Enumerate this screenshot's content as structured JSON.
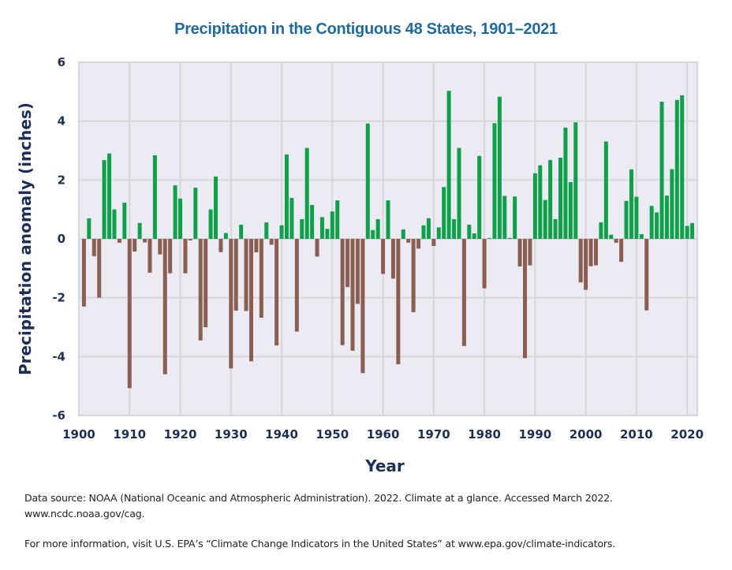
{
  "chart_data": {
    "type": "bar",
    "title": "Precipitation in the Contiguous 48 States, 1901–2021",
    "xlabel": "Year",
    "ylabel": "Precipitation anomaly (inches)",
    "xlim": [
      1900,
      2022
    ],
    "ylim": [
      -6,
      6
    ],
    "xticks": [
      1900,
      1910,
      1920,
      1930,
      1940,
      1950,
      1960,
      1970,
      1980,
      1990,
      2000,
      2010,
      2020
    ],
    "yticks": [
      6,
      4,
      2,
      0,
      -2,
      -4,
      -6
    ],
    "grid": true,
    "legend": "none",
    "colors": {
      "positive": "#0fa04a",
      "negative": "#8b5e52",
      "plot_background": "#ecebf3",
      "grid": "#d6d5dc"
    },
    "start_year": 1901,
    "values": [
      -2.3,
      0.7,
      -0.59,
      -2.0,
      2.68,
      2.9,
      1.0,
      -0.13,
      1.23,
      -5.07,
      -0.43,
      0.54,
      -0.12,
      -1.15,
      2.84,
      -0.53,
      -4.6,
      -1.17,
      1.82,
      1.37,
      -1.17,
      -0.05,
      1.74,
      -3.45,
      -3.0,
      1.0,
      2.12,
      -0.45,
      0.2,
      -4.4,
      -2.44,
      0.48,
      -2.45,
      -4.16,
      -0.46,
      -2.68,
      0.56,
      -0.2,
      -3.62,
      0.46,
      2.87,
      1.39,
      -3.15,
      0.67,
      3.09,
      1.15,
      -0.6,
      0.74,
      0.34,
      0.93,
      1.31,
      -3.61,
      -1.64,
      -3.8,
      -2.21,
      -4.56,
      3.92,
      0.3,
      0.67,
      -1.19,
      1.31,
      -1.35,
      -4.26,
      0.32,
      -0.13,
      -2.49,
      -0.33,
      0.46,
      0.7,
      -0.24,
      0.39,
      1.76,
      5.03,
      0.67,
      3.09,
      -3.64,
      0.48,
      0.19,
      2.82,
      -1.68,
      0.03,
      3.93,
      4.83,
      1.46,
      0.03,
      1.44,
      -0.94,
      -4.05,
      -0.9,
      2.23,
      2.5,
      1.32,
      2.68,
      0.67,
      2.76,
      3.78,
      1.93,
      3.96,
      -1.48,
      -1.73,
      -0.93,
      -0.9,
      0.56,
      3.31,
      0.14,
      -0.13,
      -0.78,
      1.29,
      2.36,
      1.43,
      0.16,
      -2.43,
      1.12,
      0.9,
      4.66,
      1.47,
      2.37,
      4.72,
      4.88,
      0.44,
      0.54
    ]
  },
  "footer": {
    "source": "Data source: NOAA (National Oceanic and Atmospheric Administration). 2022. Climate at a glance. Accessed March 2022. www.ncdc.noaa.gov/cag.",
    "info": "For more information, visit U.S. EPA’s “Climate Change Indicators in the United States” at www.epa.gov/climate-indicators."
  }
}
